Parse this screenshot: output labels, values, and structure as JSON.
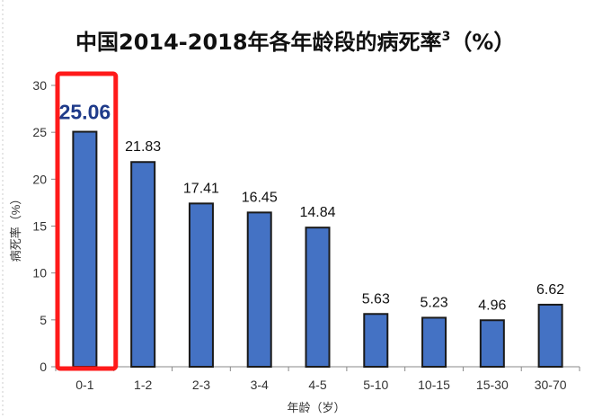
{
  "chart_data": {
    "type": "bar",
    "title": "中国2014-2018年各年龄段的病死率",
    "title_superscript": "3",
    "title_suffix": "（%）",
    "xlabel": "年龄（岁）",
    "ylabel": "病死率（%）",
    "categories": [
      "0-1",
      "1-2",
      "2-3",
      "3-4",
      "4-5",
      "5-10",
      "10-15",
      "15-30",
      "30-70"
    ],
    "values": [
      25.06,
      21.83,
      17.41,
      16.45,
      14.84,
      5.63,
      5.23,
      4.96,
      6.62
    ],
    "data_labels": [
      "25.06",
      "21.83",
      "17.41",
      "16.45",
      "14.84",
      "5.63",
      "5.23",
      "4.96",
      "6.62"
    ],
    "ylim": [
      0,
      30
    ],
    "yticks": [
      0,
      5,
      10,
      15,
      20,
      25,
      30
    ],
    "highlight_index": 0,
    "grid": false,
    "legend": "none",
    "colors": {
      "bar": "#4472C4",
      "bar_edge": "#1a1a1a",
      "highlight_box": "#ff1a1a",
      "highlight_label": "#1f3b8a"
    }
  }
}
